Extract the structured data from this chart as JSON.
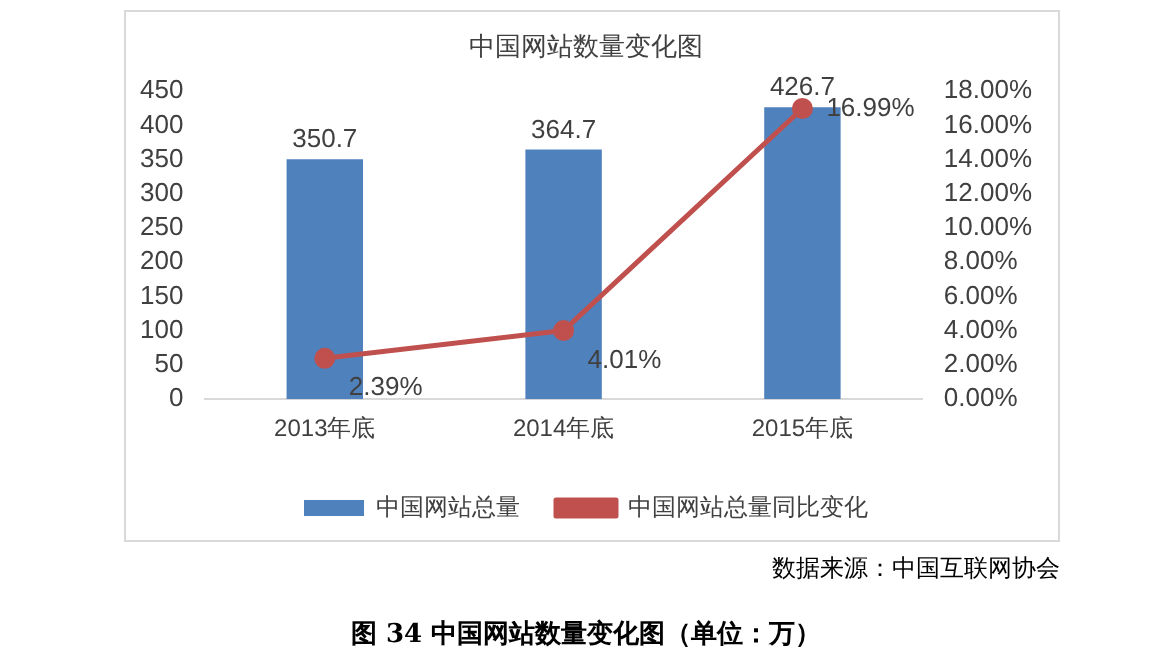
{
  "chart_data": {
    "type": "bar",
    "title": "中国网站数量变化图",
    "categories": [
      "2013年底",
      "2014年底",
      "2015年底"
    ],
    "series": [
      {
        "name": "中国网站总量",
        "color": "#4f81bd",
        "values": [
          350.7,
          364.7,
          426.7
        ],
        "value_labels": [
          "350.7",
          "364.7",
          "426.7"
        ]
      },
      {
        "name": "中国网站总量同比变化",
        "type": "line",
        "axis": "y2",
        "color": "#c0504d",
        "marker": "circle",
        "values": [
          2.39,
          4.01,
          16.99
        ],
        "value_labels": [
          "2.39%",
          "4.01%",
          "16.99%"
        ]
      }
    ],
    "ylim": [
      0,
      450
    ],
    "yticks": [
      0,
      50,
      100,
      150,
      200,
      250,
      300,
      350,
      400,
      450
    ],
    "y2lim": [
      0,
      18
    ],
    "y2ticks": [
      {
        "value": 0,
        "label": "0.00%"
      },
      {
        "value": 2,
        "label": "2.00%"
      },
      {
        "value": 4,
        "label": "4.00%"
      },
      {
        "value": 6,
        "label": "6.00%"
      },
      {
        "value": 8,
        "label": "8.00%"
      },
      {
        "value": 10,
        "label": "10.00%"
      },
      {
        "value": 12,
        "label": "12.00%"
      },
      {
        "value": 14,
        "label": "14.00%"
      },
      {
        "value": 16,
        "label": "16.00%"
      },
      {
        "value": 18,
        "label": "18.00%"
      }
    ],
    "legend": "bottom",
    "annotations": [
      "数据来源：中国互联网协会",
      "图 34 中国网站数量变化图（单位：万）"
    ]
  }
}
